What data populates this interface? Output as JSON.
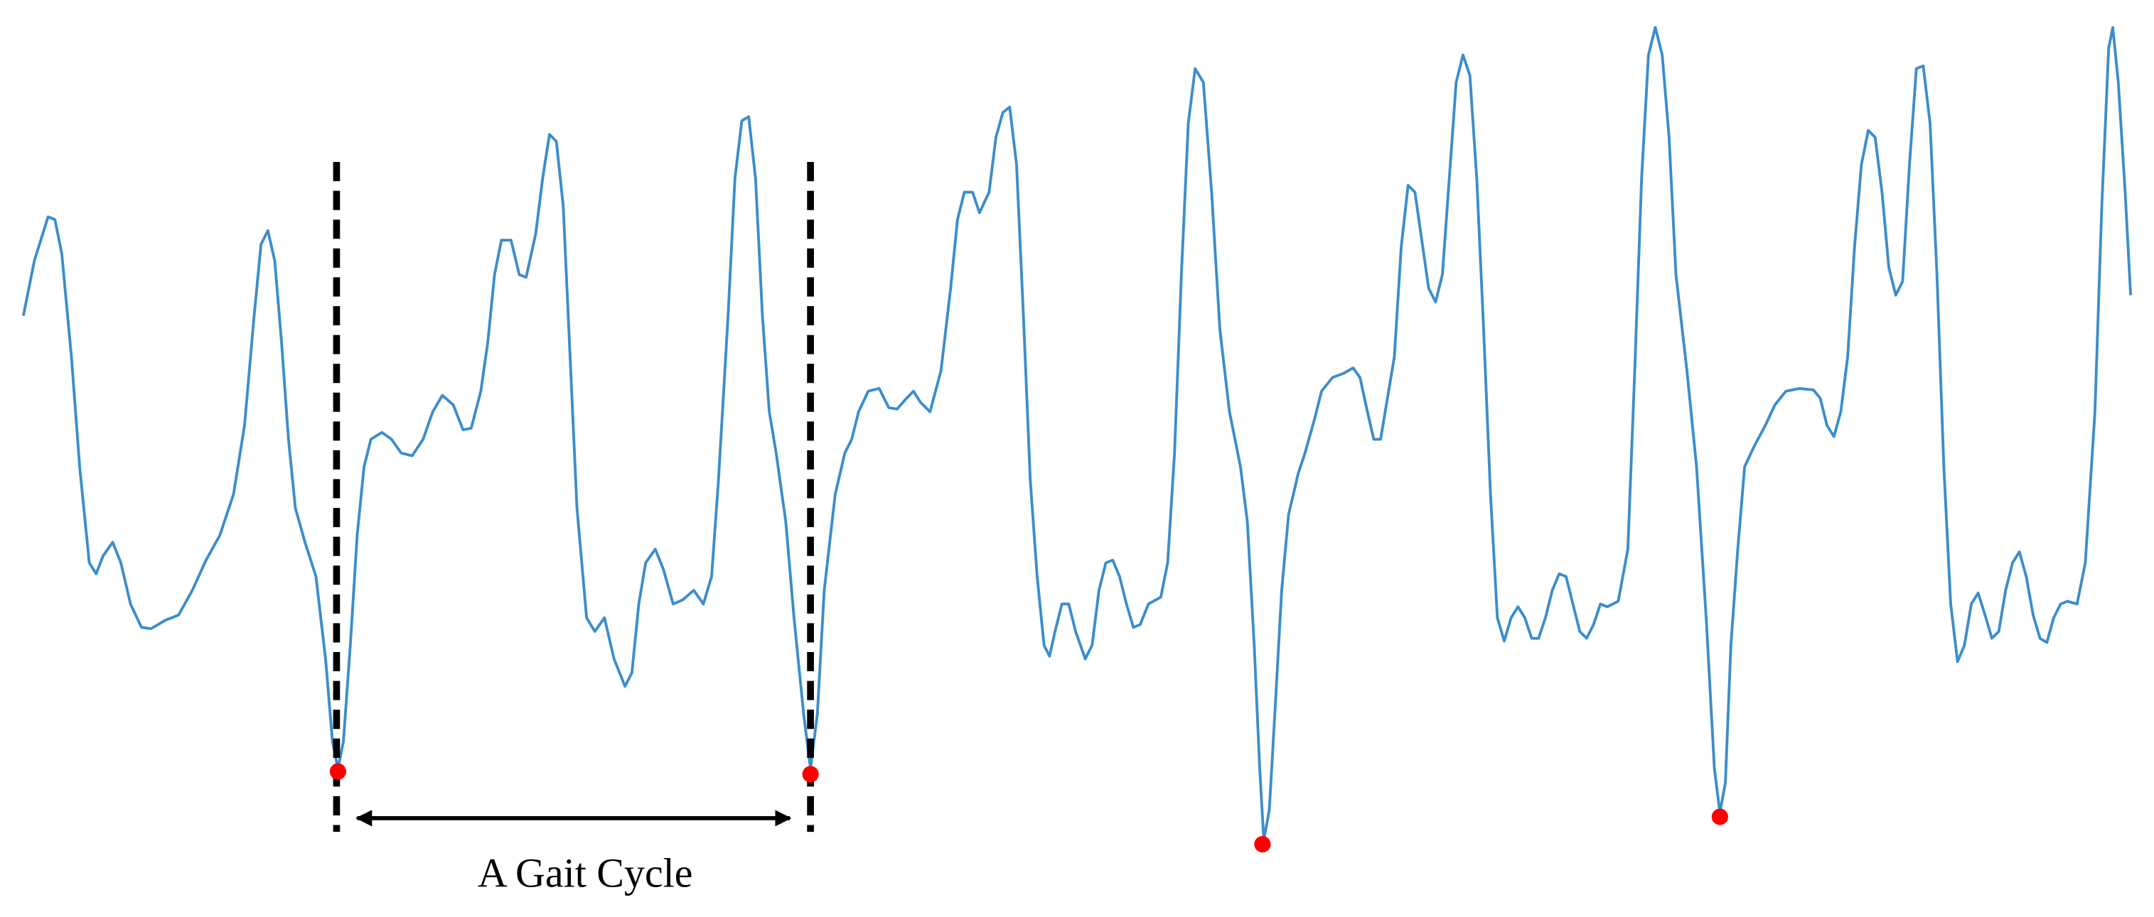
{
  "annotation": "A Gait Cycle"
}
